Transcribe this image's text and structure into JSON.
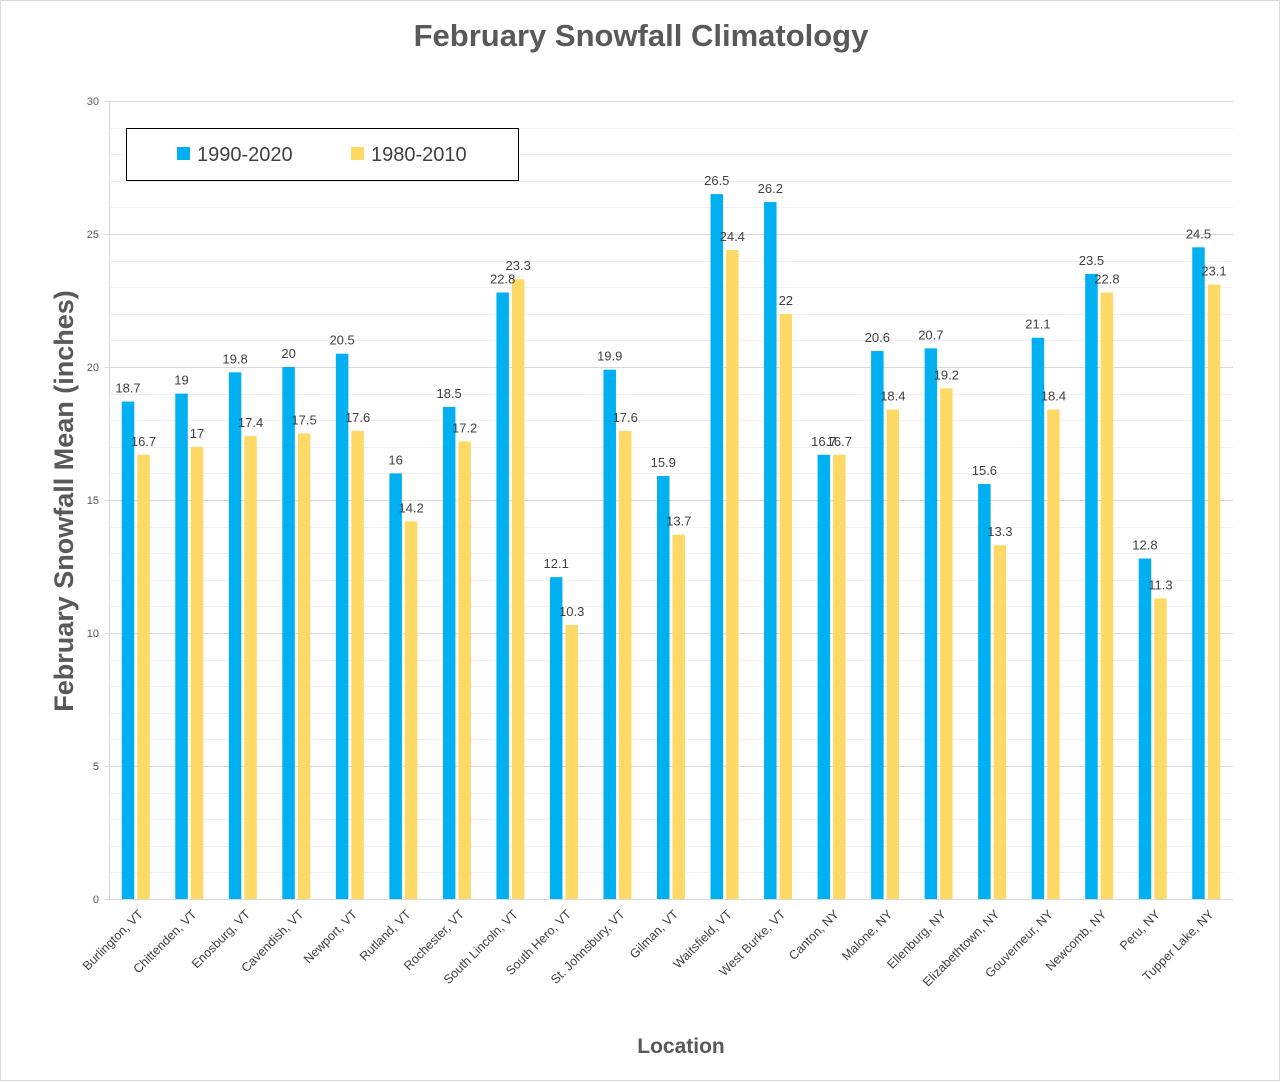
{
  "chart_data": {
    "type": "bar",
    "title": "February Snowfall Climatology",
    "xlabel": "Location",
    "ylabel": "February Snowfall Mean (inches)",
    "ylim": [
      0,
      30
    ],
    "yticks": [
      0,
      5,
      10,
      15,
      20,
      25,
      30
    ],
    "grid": true,
    "legend_position": "top-left",
    "categories": [
      "Burlington, VT",
      "Chittenden, VT",
      "Enosburg, VT",
      "Cavendish, VT",
      "Newport, VT",
      "Rutland, VT",
      "Rochester, VT",
      "South Lincoln, VT",
      "South Hero, VT",
      "St. Johnsbury, VT",
      "Gilman, VT",
      "Waitsfield, VT",
      "West Burke, VT",
      "Canton, NY",
      "Malone, NY",
      "Ellenburg, NY",
      "Elizabethtown, NY",
      "Gouverneur, NY",
      "Newcomb, NY",
      "Peru, NY",
      "Tupper Lake, NY"
    ],
    "series": [
      {
        "name": "1990-2020",
        "color": "#00b0f0",
        "values": [
          18.7,
          19,
          19.8,
          20,
          20.5,
          16,
          18.5,
          22.8,
          12.1,
          19.9,
          15.9,
          26.5,
          26.2,
          16.7,
          20.6,
          20.7,
          15.6,
          21.1,
          23.5,
          12.8,
          24.5
        ]
      },
      {
        "name": "1980-2010",
        "color": "#ffd966",
        "values": [
          16.7,
          17,
          17.4,
          17.5,
          17.6,
          14.2,
          17.2,
          23.3,
          10.3,
          17.6,
          13.7,
          24.4,
          22,
          16.7,
          18.4,
          19.2,
          13.3,
          18.4,
          22.8,
          11.3,
          23.1
        ]
      }
    ]
  }
}
